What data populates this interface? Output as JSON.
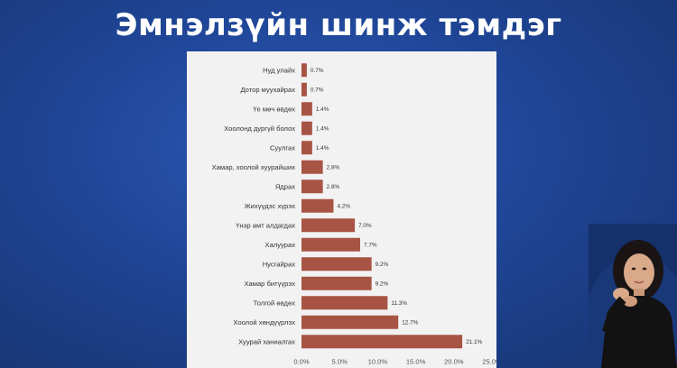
{
  "slide": {
    "title": "Эмнэлзүйн шинж тэмдэг"
  },
  "colors": {
    "background": "#1f4596",
    "panel": "#f2f2f2",
    "bar": "#a85444",
    "title": "#ffffff"
  },
  "chart_data": {
    "type": "bar",
    "orientation": "horizontal",
    "title": "",
    "xlabel": "",
    "ylabel": "",
    "categories": [
      "Нуд улайх",
      "Дотор муухайрах",
      "Үе мөч өвдөх",
      "Хоолонд дургүй болох",
      "Суулгах",
      "Хамар, хоолой хуурайших",
      "Ядрах",
      "Жихүүдэс хүрэх",
      "Үнэр амт алдагдах",
      "Халуурах",
      "Нусгайрах",
      "Хамар битүүрэх",
      "Толгой өвдөх",
      "Хоолой хөндүүрлэх",
      "Хуурай ханиалгах"
    ],
    "values": [
      0.7,
      0.7,
      1.4,
      1.4,
      1.4,
      2.8,
      2.8,
      4.2,
      7.0,
      7.7,
      9.2,
      9.2,
      11.3,
      12.7,
      21.1
    ],
    "value_labels": [
      "0.7%",
      "0.7%",
      "1.4%",
      "1.4%",
      "1.4%",
      "2.8%",
      "2.8%",
      "4.2%",
      "7.0%",
      "7.7%",
      "9.2%",
      "9.2%",
      "11.3%",
      "12.7%",
      "21.1%"
    ],
    "xlim": [
      0,
      25
    ],
    "x_ticks": [
      0,
      5,
      10,
      15,
      20,
      25
    ],
    "x_tick_labels": [
      "0.0%",
      "5.0%",
      "10.0%",
      "15.0%",
      "20.0%",
      "25.0%"
    ],
    "grid": false,
    "legend": "none"
  }
}
